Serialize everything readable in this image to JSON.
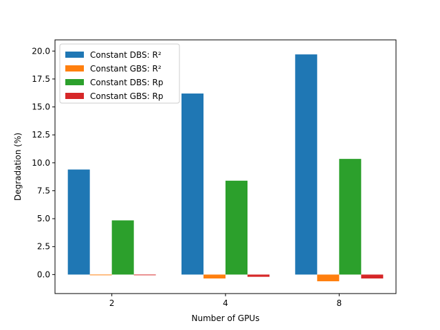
{
  "chart_data": {
    "type": "bar",
    "title": "",
    "xlabel": "Number of GPUs",
    "ylabel": "Degradation (%)",
    "categories": [
      "2",
      "4",
      "8"
    ],
    "ylim": [
      -1.7,
      21.0
    ],
    "yticks": [
      0.0,
      2.5,
      5.0,
      7.5,
      10.0,
      12.5,
      15.0,
      17.5,
      20.0
    ],
    "ytick_labels": [
      "0.0",
      "2.5",
      "5.0",
      "7.5",
      "10.0",
      "12.5",
      "15.0",
      "17.5",
      "20.0"
    ],
    "grid": false,
    "legend_position": "top-left",
    "series": [
      {
        "name": "Constant DBS: R²",
        "color": "#1f77b4",
        "values": [
          9.4,
          16.2,
          19.7
        ]
      },
      {
        "name": "Constant GBS: R²",
        "color": "#ff7f0e",
        "values": [
          -0.05,
          -0.35,
          -0.6
        ]
      },
      {
        "name": "Constant DBS: Rp",
        "color": "#2ca02c",
        "values": [
          4.85,
          8.4,
          10.35
        ]
      },
      {
        "name": "Constant GBS: Rp",
        "color": "#d62728",
        "values": [
          -0.05,
          -0.2,
          -0.35
        ]
      }
    ]
  }
}
